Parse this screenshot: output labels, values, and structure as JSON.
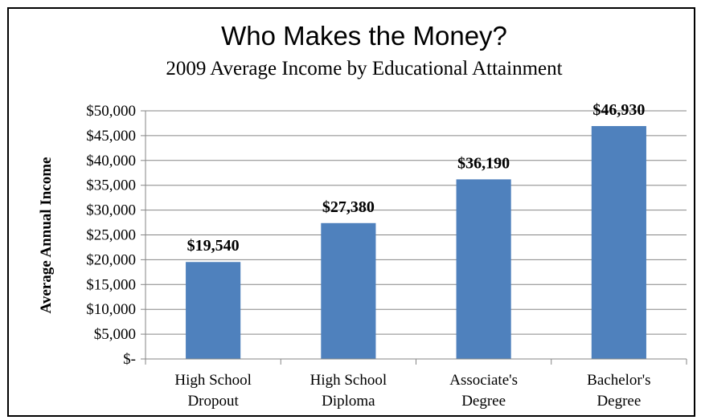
{
  "chart_data": {
    "type": "bar",
    "title": "Who Makes the Money?",
    "subtitle": "2009 Average Income by Educational Attainment",
    "ylabel": "Average Annual Income",
    "xlabel": "",
    "categories": [
      [
        "High School",
        "Dropout"
      ],
      [
        "High School",
        "Diploma"
      ],
      [
        "Associate's",
        "Degree"
      ],
      [
        "Bachelor's",
        "Degree"
      ]
    ],
    "values": [
      19540,
      27380,
      36190,
      46930
    ],
    "data_labels": [
      "$19,540",
      "$27,380",
      "$36,190",
      "$46,930"
    ],
    "ylim": [
      0,
      50000
    ],
    "yticks": [
      0,
      5000,
      10000,
      15000,
      20000,
      25000,
      30000,
      35000,
      40000,
      45000,
      50000
    ],
    "ytick_labels": [
      "$-",
      "$5,000",
      "$10,000",
      "$15,000",
      "$20,000",
      "$25,000",
      "$30,000",
      "$35,000",
      "$40,000",
      "$45,000",
      "$50,000"
    ],
    "grid": true,
    "legend": "none",
    "bar_color": "#4F81BD",
    "grid_color": "#868686"
  }
}
